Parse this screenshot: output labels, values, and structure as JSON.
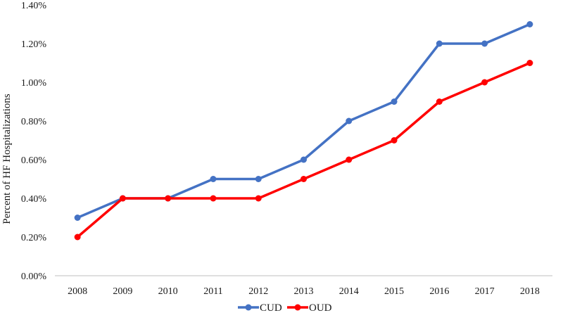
{
  "chart_data": {
    "type": "line",
    "ylabel": "Percent of HF Hospitalizations",
    "xlabel": "",
    "categories": [
      "2008",
      "2009",
      "2010",
      "2011",
      "2012",
      "2013",
      "2014",
      "2015",
      "2016",
      "2017",
      "2018"
    ],
    "ylim": [
      0,
      1.4
    ],
    "yticks": [
      "0.00%",
      "0.20%",
      "0.40%",
      "0.60%",
      "0.80%",
      "1.00%",
      "1.20%",
      "1.40%"
    ],
    "series": [
      {
        "name": "CUD",
        "color": "#4472C4",
        "values": [
          0.3,
          0.4,
          0.4,
          0.5,
          0.5,
          0.6,
          0.8,
          0.9,
          1.2,
          1.2,
          1.3
        ]
      },
      {
        "name": "OUD",
        "color": "#FF0000",
        "values": [
          0.2,
          0.4,
          0.4,
          0.4,
          0.4,
          0.5,
          0.6,
          0.7,
          0.9,
          1.0,
          1.1
        ]
      }
    ],
    "grid": false,
    "legend_position": "bottom"
  }
}
